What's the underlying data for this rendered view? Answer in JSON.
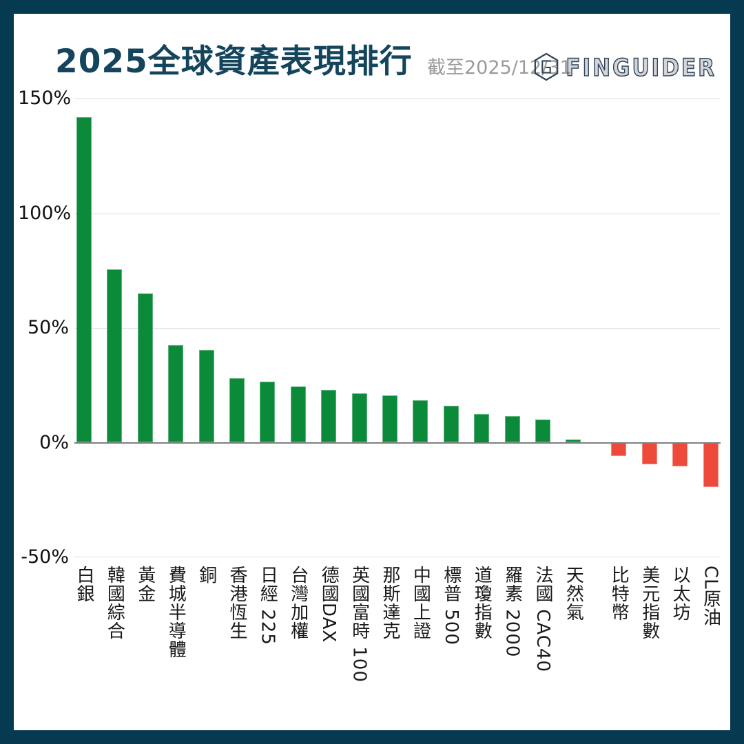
{
  "header": {
    "title": "2025全球資產表現排行",
    "subtitle": "截至2025/12/31",
    "logo_text": "FINGUIDER"
  },
  "colors": {
    "positive_bar": "#0b8a3a",
    "negative_bar": "#ee4a3c",
    "frame": "#053a50",
    "title_text": "#14455c",
    "subtitle_text": "#9b9b9b",
    "gridline": "#dcdcdc",
    "zero_axis_line": "#7f7f7f",
    "axis_text": "#1a1a1a"
  },
  "chart_data": {
    "type": "bar",
    "title": "2025全球資產表現排行",
    "subtitle": "截至2025/12/31",
    "xlabel": "",
    "ylabel": "",
    "ylim": [
      -50,
      150
    ],
    "grid": "horizontal",
    "legend": "none",
    "categories": [
      "白銀",
      "韓國綜合",
      "黃金",
      "費城半導體",
      "銅",
      "香港恆生",
      "日經 225",
      "台灣加權",
      "德國DAX",
      "英國富時 100",
      "那斯達克",
      "中國上證",
      "標普 500",
      "道瓊指數",
      "羅素 2000",
      "法國 CAC40",
      "天然氣",
      "比特幣",
      "美元指數",
      "以太坊",
      "CL原油"
    ],
    "values": [
      142,
      75.5,
      65,
      42.5,
      40.5,
      28,
      26.5,
      24.5,
      23,
      21.5,
      20.5,
      18.5,
      16,
      12.5,
      11.5,
      10,
      1.5,
      -6,
      -9.5,
      -10.5,
      -19.5
    ],
    "yticks": [
      {
        "value": 150,
        "label": "150%"
      },
      {
        "value": 100,
        "label": "100%"
      },
      {
        "value": 50,
        "label": "50%"
      },
      {
        "value": 0,
        "label": "0%"
      },
      {
        "value": -50,
        "label": "-50%"
      }
    ],
    "bar_color_rule": "positive=green, negative=red",
    "group_gap_after_index": 16
  }
}
